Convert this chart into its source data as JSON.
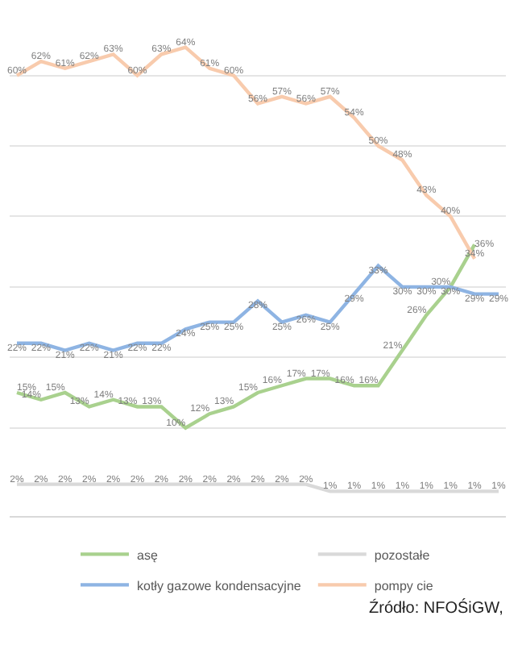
{
  "chart_data": {
    "type": "line",
    "categories": [
      null,
      null,
      null,
      null,
      null,
      null,
      null,
      null,
      null,
      null,
      null,
      null,
      null,
      null,
      null,
      null,
      null,
      null,
      null,
      null,
      null
    ],
    "series": [
      {
        "name": "asę",
        "color": "#a9d18e",
        "values": [
          15,
          14,
          15,
          13,
          14,
          13,
          13,
          10,
          12,
          13,
          15,
          16,
          17,
          17,
          16,
          16,
          21,
          26,
          30,
          36,
          null
        ],
        "value_labels": [
          "15%",
          "14%",
          "15%",
          "13%",
          "14%",
          "13%",
          "13%",
          "10%",
          "12%",
          "13%",
          "15%",
          "16%",
          "17%",
          "17%",
          "16%",
          "16%",
          "21%",
          "26%",
          "30%",
          "36%",
          null
        ]
      },
      {
        "name": "pozostałe",
        "color": "#d9d9d9",
        "values": [
          2,
          2,
          2,
          2,
          2,
          2,
          2,
          2,
          2,
          2,
          2,
          2,
          2,
          1,
          1,
          1,
          1,
          1,
          1,
          1,
          1
        ],
        "value_labels": [
          "2%",
          "2%",
          "2%",
          "2%",
          "2%",
          "2%",
          "2%",
          "2%",
          "2%",
          "2%",
          "2%",
          "2%",
          "2%",
          "1%",
          "1%",
          "1%",
          "1%",
          "1%",
          "1%",
          "1%",
          "1%"
        ]
      },
      {
        "name": "kotły gazowe kondensacyjne",
        "color": "#8eb4e3",
        "values": [
          22,
          22,
          21,
          22,
          21,
          22,
          22,
          24,
          25,
          25,
          28,
          25,
          26,
          25,
          29,
          33,
          30,
          30,
          30,
          29,
          29
        ],
        "value_labels": [
          "22%",
          "22%",
          "21%",
          "22%",
          "21%",
          "22%",
          "22%",
          "24%",
          "25%",
          "25%",
          "28%",
          "25%",
          "26%",
          "25%",
          "29%",
          "33%",
          "30%",
          "30%",
          "30%",
          "29%",
          "29%"
        ]
      },
      {
        "name": "pompy cie",
        "color": "#f8cbad",
        "values": [
          60,
          62,
          61,
          62,
          63,
          60,
          63,
          64,
          61,
          60,
          56,
          57,
          56,
          57,
          54,
          50,
          48,
          43,
          40,
          34,
          null
        ],
        "value_labels": [
          "60%",
          "62%",
          "61%",
          "62%",
          "63%",
          "60%",
          "63%",
          "64%",
          "61%",
          "60%",
          "56%",
          "57%",
          "56%",
          "57%",
          "54%",
          "50%",
          "48%",
          "43%",
          "40%",
          "34%",
          null
        ]
      }
    ],
    "yticks": [
      {
        "value": 10,
        "label": null
      },
      {
        "value": 20,
        "label": null
      },
      {
        "value": 30,
        "label": null
      },
      {
        "value": 40,
        "label": null
      },
      {
        "value": 50,
        "label": null
      },
      {
        "value": 60,
        "label": null
      }
    ],
    "grid": "y",
    "legend": "bottom",
    "marker": "none",
    "line_style": "solid",
    "annotations": [
      "Źródło: NFOŚiGW,"
    ]
  }
}
